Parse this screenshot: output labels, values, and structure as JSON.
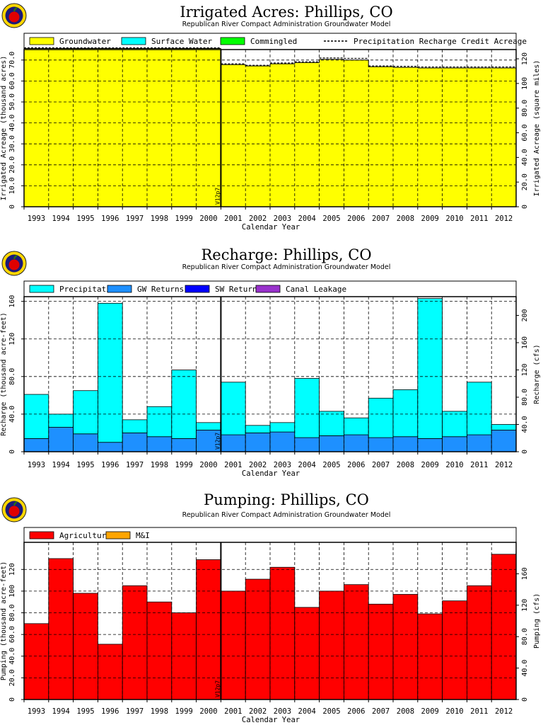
{
  "years": [
    "1993",
    "1994",
    "1995",
    "1996",
    "1997",
    "1998",
    "1999",
    "2000",
    "2001",
    "2002",
    "2003",
    "2004",
    "2005",
    "2006",
    "2007",
    "2008",
    "2009",
    "2010",
    "2011",
    "2012"
  ],
  "marker_label": "V12p7",
  "colors": {
    "groundwater": "#ffff00",
    "surface_water": "#00ffff",
    "commingled": "#00ff00",
    "precipitation": "#00ffff",
    "gw_returns": "#1e90ff",
    "sw_returns": "#0000ff",
    "canal_leakage": "#9932cc",
    "agricultural": "#ff0000",
    "mi": "#ffa500"
  },
  "chart_data": [
    {
      "type": "area",
      "title": "Irrigated Acres: Phillips, CO",
      "subtitle": "Republican River Compact Administration Groundwater Model",
      "xlabel": "Calendar Year",
      "ylabel": "Irrigated Acreage (thousand acres)",
      "y2label": "Irrigated Acreage (square miles)",
      "ylim": [
        0,
        75
      ],
      "yticks": [
        "0",
        "10.0",
        "20.0",
        "30.0",
        "40.0",
        "50.0",
        "60.0",
        "70.0"
      ],
      "y2ticks": [
        "0",
        "20.0",
        "40.0",
        "60.0",
        "80.0",
        "100",
        "120"
      ],
      "legend": [
        "Groundwater",
        "Surface Water",
        "Commingled",
        "Precipitation Recharge Credit Acreage"
      ],
      "series": [
        {
          "name": "Groundwater",
          "values": [
            75.5,
            75.5,
            75.5,
            75.5,
            75.5,
            75.5,
            75.5,
            75.5,
            67.8,
            67.2,
            68.2,
            68.8,
            70.3,
            70.0,
            66.8,
            66.5,
            66.2,
            66.2,
            66.2,
            66.2
          ]
        },
        {
          "name": "Surface Water",
          "values": [
            0,
            0,
            0,
            0,
            0,
            0,
            0,
            0,
            0,
            0,
            0,
            0,
            0,
            0,
            0,
            0,
            0,
            0,
            0,
            0
          ]
        },
        {
          "name": "Commingled",
          "values": [
            0,
            0,
            0,
            0,
            0,
            0,
            0,
            0,
            0,
            0,
            0,
            0,
            0,
            0,
            0,
            0,
            0,
            0,
            0,
            0
          ]
        },
        {
          "name": "Precipitation Recharge Credit Acreage",
          "values": [
            75.8,
            75.8,
            75.8,
            75.8,
            75.8,
            75.8,
            75.8,
            75.8,
            68.2,
            67.5,
            68.6,
            69.2,
            71.0,
            70.8,
            67.2,
            67.0,
            66.7,
            66.7,
            66.7,
            66.7
          ]
        }
      ]
    },
    {
      "type": "bar",
      "title": "Recharge: Phillips, CO",
      "subtitle": "Republican River Compact Administration Groundwater Model",
      "xlabel": "Calendar Year",
      "ylabel": "Recharge (thousand acre-feet)",
      "y2label": "Recharge (cfs)",
      "ylim": [
        0,
        165
      ],
      "yticks": [
        "0",
        "40.0",
        "80.0",
        "120",
        "160"
      ],
      "y2ticks": [
        "0",
        "40.0",
        "80.0",
        "120",
        "160",
        "200"
      ],
      "legend": [
        "Precipitation",
        "GW Returns",
        "SW Returns",
        "Canal Leakage"
      ],
      "series": [
        {
          "name": "Precipitation",
          "values": [
            47,
            14,
            46,
            148,
            14,
            32,
            73,
            8,
            56,
            8,
            10,
            63,
            26,
            18,
            42,
            50,
            149,
            27,
            56,
            6
          ]
        },
        {
          "name": "GW Returns",
          "values": [
            14,
            26,
            19,
            10,
            20,
            16,
            14,
            23,
            18,
            20,
            21,
            15,
            17,
            18,
            15,
            16,
            14,
            16,
            18,
            23
          ]
        },
        {
          "name": "SW Returns",
          "values": [
            0,
            0,
            0,
            0,
            0,
            0,
            0,
            0,
            0,
            0,
            0,
            0,
            0,
            0,
            0,
            0,
            0,
            0,
            0,
            0
          ]
        },
        {
          "name": "Canal Leakage",
          "values": [
            0,
            0,
            0,
            0,
            0,
            0,
            0,
            0,
            0,
            0,
            0,
            0,
            0,
            0,
            0,
            0,
            0,
            0,
            0,
            0
          ]
        }
      ]
    },
    {
      "type": "bar",
      "title": "Pumping: Phillips, CO",
      "subtitle": "Republican River Compact Administration Groundwater Model",
      "xlabel": "Calendar Year",
      "ylabel": "Pumping (thousand acre-feet)",
      "y2label": "Pumping (cfs)",
      "ylim": [
        0,
        145
      ],
      "yticks": [
        "0",
        "20.0",
        "40.0",
        "60.0",
        "80.0",
        "100",
        "120"
      ],
      "y2ticks": [
        "0",
        "40.0",
        "80.0",
        "120",
        "160"
      ],
      "legend": [
        "Agricultural",
        "M&I"
      ],
      "series": [
        {
          "name": "Agricultural",
          "values": [
            70,
            130,
            98,
            51,
            105,
            90,
            80,
            129,
            100,
            111,
            122,
            85,
            100,
            106,
            88,
            97,
            79,
            91,
            105,
            134
          ]
        },
        {
          "name": "M&I",
          "values": [
            0,
            0,
            0,
            0,
            0,
            0,
            0,
            0,
            0,
            0,
            0,
            0,
            0,
            0,
            0,
            0,
            0,
            0,
            0,
            0
          ]
        }
      ]
    }
  ]
}
